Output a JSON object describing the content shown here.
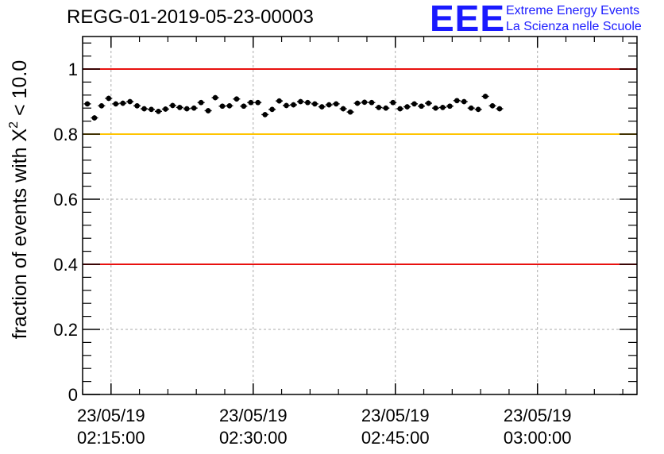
{
  "chart_data": {
    "type": "scatter",
    "title": "REGG-01-2019-05-23-00003",
    "ylabel_prefix": "fraction of events with ",
    "ylabel_symbol": "Χ",
    "ylabel_exp": "2",
    "ylabel_suffix": " < 10.0",
    "xlabel": "",
    "ylim": [
      0,
      1.1
    ],
    "xlim_minutes": [
      0,
      58.5
    ],
    "y_ticks": [
      {
        "value": 0,
        "label": "0"
      },
      {
        "value": 0.2,
        "label": "0.2"
      },
      {
        "value": 0.4,
        "label": "0.4"
      },
      {
        "value": 0.6,
        "label": "0.6"
      },
      {
        "value": 0.8,
        "label": "0.8"
      },
      {
        "value": 1.0,
        "label": "1"
      }
    ],
    "x_ticks": [
      {
        "minute": 3,
        "date": "23/05/19",
        "time": "02:15:00"
      },
      {
        "minute": 18,
        "date": "23/05/19",
        "time": "02:30:00"
      },
      {
        "minute": 33,
        "date": "23/05/19",
        "time": "02:45:00"
      },
      {
        "minute": 48,
        "date": "23/05/19",
        "time": "03:00:00"
      }
    ],
    "reference_lines": [
      {
        "y": 1.0,
        "color": "#e8110f"
      },
      {
        "y": 0.8,
        "color": "#ffc400"
      },
      {
        "y": 0.4,
        "color": "#e8110f"
      }
    ],
    "x_start_minute": 0.5,
    "x_step_minutes": 0.75,
    "y_error": 0.008,
    "y": [
      0.893,
      0.85,
      0.887,
      0.91,
      0.893,
      0.895,
      0.9,
      0.887,
      0.878,
      0.876,
      0.87,
      0.877,
      0.888,
      0.882,
      0.878,
      0.88,
      0.897,
      0.872,
      0.912,
      0.886,
      0.887,
      0.908,
      0.886,
      0.897,
      0.897,
      0.86,
      0.876,
      0.902,
      0.888,
      0.89,
      0.9,
      0.897,
      0.893,
      0.884,
      0.89,
      0.893,
      0.878,
      0.868,
      0.895,
      0.898,
      0.897,
      0.882,
      0.88,
      0.897,
      0.878,
      0.884,
      0.893,
      0.886,
      0.895,
      0.88,
      0.882,
      0.886,
      0.903,
      0.9,
      0.88,
      0.876,
      0.916,
      0.887,
      0.878
    ]
  },
  "logo": {
    "letters": "EEE",
    "line1": "Extreme Energy Events",
    "line2": "La Scienza nelle Scuole",
    "color": "#1a1aff"
  }
}
